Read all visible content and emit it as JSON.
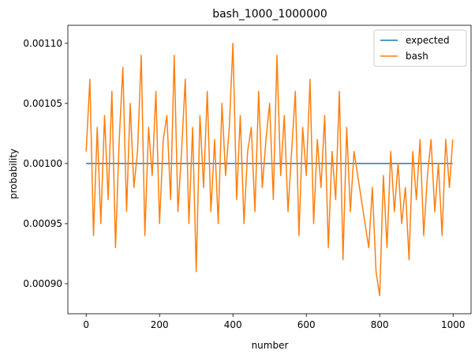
{
  "chart_data": {
    "type": "line",
    "title": "bash_1000_1000000",
    "xlabel": "number",
    "ylabel": "probability",
    "xlim": [
      -49.95,
      1048.95
    ],
    "ylim": [
      0.000875,
      0.001115
    ],
    "xticks": [
      0,
      200,
      400,
      600,
      800,
      1000
    ],
    "yticks": [
      0.0009,
      0.00095,
      0.001,
      0.00105,
      0.0011
    ],
    "ytick_labels": [
      "0.00090",
      "0.00095",
      "0.00100",
      "0.00105",
      "0.00110"
    ],
    "grid": false,
    "legend_position": "top-right",
    "colors": {
      "expected": "#1f77b4",
      "bash": "#ff7f0e"
    },
    "series": [
      {
        "name": "expected",
        "x": [
          0,
          999
        ],
        "values": [
          0.001,
          0.001
        ]
      },
      {
        "name": "bash",
        "x": [
          0,
          10,
          20,
          30,
          40,
          50,
          60,
          70,
          80,
          90,
          100,
          110,
          120,
          130,
          140,
          150,
          160,
          170,
          180,
          190,
          200,
          210,
          220,
          230,
          240,
          250,
          260,
          270,
          280,
          290,
          300,
          310,
          320,
          330,
          340,
          350,
          360,
          370,
          380,
          390,
          400,
          410,
          420,
          430,
          440,
          450,
          460,
          470,
          480,
          490,
          500,
          510,
          520,
          530,
          540,
          550,
          560,
          570,
          580,
          590,
          600,
          610,
          620,
          630,
          640,
          650,
          660,
          670,
          680,
          690,
          700,
          710,
          720,
          730,
          740,
          750,
          760,
          770,
          780,
          790,
          800,
          810,
          820,
          830,
          840,
          850,
          860,
          870,
          880,
          890,
          900,
          910,
          920,
          930,
          940,
          950,
          960,
          970,
          980,
          990,
          999
        ],
        "values": [
          0.00101,
          0.00107,
          0.00094,
          0.00103,
          0.00095,
          0.00104,
          0.00097,
          0.00106,
          0.00093,
          0.00102,
          0.00108,
          0.00096,
          0.00105,
          0.00098,
          0.00101,
          0.00109,
          0.00094,
          0.00103,
          0.00099,
          0.00106,
          0.00095,
          0.00102,
          0.00104,
          0.00097,
          0.00109,
          0.00096,
          0.00101,
          0.00107,
          0.00095,
          0.00103,
          0.00091,
          0.00104,
          0.00098,
          0.00106,
          0.00096,
          0.00102,
          0.00095,
          0.00105,
          0.00099,
          0.00103,
          0.0011,
          0.00097,
          0.00104,
          0.00095,
          0.00101,
          0.00103,
          0.00096,
          0.00106,
          0.00098,
          0.00102,
          0.00105,
          0.00097,
          0.00109,
          0.00099,
          0.00104,
          0.00096,
          0.00101,
          0.00106,
          0.00094,
          0.00103,
          0.00099,
          0.00107,
          0.00095,
          0.00102,
          0.00098,
          0.00104,
          0.00093,
          0.00101,
          0.00097,
          0.00106,
          0.00092,
          0.00103,
          0.00096,
          0.00101,
          0.00099,
          0.00097,
          0.00095,
          0.00093,
          0.00098,
          0.00091,
          0.00089,
          0.00099,
          0.00093,
          0.00101,
          0.00096,
          0.001,
          0.00095,
          0.00098,
          0.00092,
          0.00101,
          0.00097,
          0.00102,
          0.00094,
          0.00099,
          0.00102,
          0.00096,
          0.001,
          0.00094,
          0.00102,
          0.00098,
          0.00102
        ]
      }
    ]
  }
}
